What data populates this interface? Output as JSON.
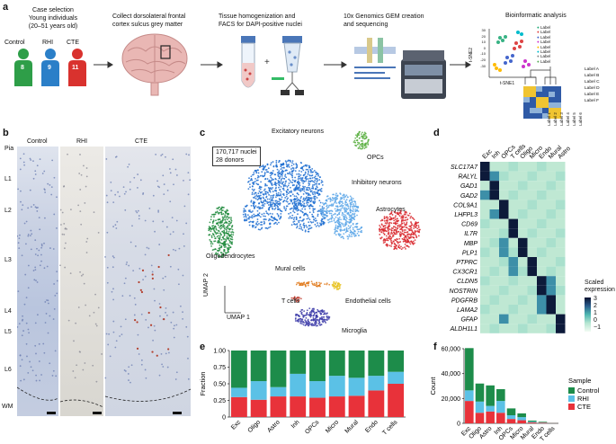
{
  "panel_a": {
    "letter": "a",
    "step1_title_lines": [
      "Case selection",
      "Young individuals",
      "(20–51 years old)"
    ],
    "groups": [
      {
        "label": "Control",
        "n": "8",
        "color": "#2e9e48"
      },
      {
        "label": "RHI",
        "n": "9",
        "color": "#2b7fc8"
      },
      {
        "label": "CTE",
        "n": "11",
        "color": "#d9322e"
      }
    ],
    "step2_lines": [
      "Collect dorsolateral frontal",
      "cortex sulcus grey matter"
    ],
    "step3_lines": [
      "Tissue homogenization and",
      "FACS for DAPI-positive nuclei"
    ],
    "step4_lines": [
      "10x Genomics GEM creation",
      "and sequencing"
    ],
    "step5_title": "Bioinformatic analysis",
    "tsne_ylabel": "t-SNE2",
    "tsne_xlabel": "t-SNE1",
    "tsne_yticks": [
      "30",
      "20",
      "10",
      "0",
      "-10",
      "-20",
      "-30"
    ],
    "tsne_legend": [
      "Label",
      "Label",
      "Label",
      "Label",
      "Label",
      "Label",
      "Label",
      "Label"
    ],
    "heatmap_row_labels": [
      "Label A",
      "Label B",
      "Label C",
      "Label D",
      "Label E",
      "Label F"
    ],
    "heatmap_col_labels": [
      "Label 1",
      "Label 2",
      "Label 3",
      "Label 4",
      "Label 5",
      "Label 6"
    ]
  },
  "panel_b": {
    "letter": "b",
    "columns": [
      "Control",
      "RHI",
      "CTE"
    ],
    "layers": [
      "Pia",
      "L1",
      "L2",
      "L3",
      "L4",
      "L5",
      "L6",
      "WM"
    ]
  },
  "panel_c": {
    "letter": "c",
    "info_lines": [
      "170,717 nuclei",
      "28 donors"
    ],
    "clusters": [
      {
        "label": "Excitatory neurons",
        "color": "#1f6fd1"
      },
      {
        "label": "OPCs",
        "color": "#5cb043"
      },
      {
        "label": "Inhibitory neurons",
        "color": "#5aa6e8"
      },
      {
        "label": "Astrocytes",
        "color": "#d8262b"
      },
      {
        "label": "Oligodendrocytes",
        "color": "#1e8a3c"
      },
      {
        "label": "Mural cells",
        "color": "#e07b1f"
      },
      {
        "label": "Endothelial cells",
        "color": "#e8c21e"
      },
      {
        "label": "T cells",
        "color": "#c0392b"
      },
      {
        "label": "Microglia",
        "color": "#3b3aa8"
      }
    ],
    "axis_y": "UMAP 2",
    "axis_x": "UMAP 1"
  },
  "panel_d": {
    "letter": "d",
    "columns": [
      "Exc",
      "Inh",
      "OPCs",
      "T cells",
      "Oligo",
      "Micro",
      "Endo",
      "Mural",
      "Astro"
    ],
    "genes": [
      "SLC17A7",
      "RALYL",
      "GAD1",
      "GAD2",
      "COL9A1",
      "LHFPL3",
      "CD69",
      "IL7R",
      "MBP",
      "PLP1",
      "PTPRC",
      "CX3CR1",
      "CLDN5",
      "NOSTRIN",
      "PDGFRB",
      "LAMA2",
      "GFAP",
      "ALDH1L1"
    ],
    "colorbar_title_lines": [
      "Scaled",
      "expression"
    ],
    "colorbar_ticks": [
      "3",
      "2",
      "1",
      "0",
      "−1"
    ],
    "high_cells": [
      [
        0,
        0
      ],
      [
        1,
        0
      ],
      [
        2,
        1
      ],
      [
        3,
        1
      ],
      [
        4,
        2
      ],
      [
        5,
        2
      ],
      [
        6,
        3
      ],
      [
        7,
        3
      ],
      [
        8,
        4
      ],
      [
        9,
        4
      ],
      [
        10,
        5
      ],
      [
        11,
        5
      ],
      [
        12,
        6
      ],
      [
        13,
        6
      ],
      [
        14,
        7
      ],
      [
        15,
        7
      ],
      [
        16,
        8
      ],
      [
        17,
        8
      ]
    ],
    "mid_cells": [
      [
        1,
        1
      ],
      [
        5,
        1
      ],
      [
        10,
        3
      ],
      [
        8,
        2
      ],
      [
        9,
        2
      ],
      [
        13,
        7
      ],
      [
        12,
        7
      ],
      [
        15,
        6
      ],
      [
        14,
        6
      ],
      [
        16,
        2
      ],
      [
        3,
        0
      ],
      [
        11,
        3
      ]
    ]
  },
  "panel_e": {
    "letter": "e",
    "chart_data": {
      "type": "bar",
      "stacked": true,
      "categories": [
        "Exc",
        "Oligo",
        "Astro",
        "Inh",
        "OPCs",
        "Micro",
        "Mural",
        "Endo",
        "T cells"
      ],
      "series": [
        {
          "name": "CTE",
          "color": "#e8323a",
          "values": [
            0.3,
            0.26,
            0.31,
            0.31,
            0.29,
            0.31,
            0.32,
            0.4,
            0.5
          ]
        },
        {
          "name": "RHI",
          "color": "#5bc1e6",
          "values": [
            0.14,
            0.28,
            0.14,
            0.34,
            0.25,
            0.31,
            0.27,
            0.22,
            0.18
          ]
        },
        {
          "name": "Control",
          "color": "#1d8c4a",
          "values": [
            0.56,
            0.46,
            0.55,
            0.35,
            0.46,
            0.38,
            0.41,
            0.38,
            0.32
          ]
        }
      ],
      "ylabel": "Fraction",
      "ylim": [
        0,
        1
      ],
      "yticks": [
        "0",
        "0.25",
        "0.50",
        "0.75",
        "1.00"
      ]
    }
  },
  "panel_f": {
    "letter": "f",
    "chart_data": {
      "type": "bar",
      "stacked": true,
      "categories": [
        "Exc",
        "Oligo",
        "Astro",
        "Inh",
        "OPCs",
        "Micro",
        "Mural",
        "Endo",
        "T cells"
      ],
      "series": [
        {
          "name": "CTE",
          "color": "#e8323a",
          "values": [
            18000,
            8500,
            9500,
            8500,
            3500,
            2500,
            700,
            500,
            100
          ]
        },
        {
          "name": "RHI",
          "color": "#5bc1e6",
          "values": [
            8500,
            9000,
            4500,
            9500,
            3000,
            2500,
            600,
            300,
            40
          ]
        },
        {
          "name": "Control",
          "color": "#1d8c4a",
          "values": [
            34000,
            14500,
            16500,
            9500,
            5500,
            3000,
            900,
            500,
            60
          ]
        }
      ],
      "ylabel": "Count",
      "ylim": [
        0,
        60000
      ],
      "yticks": [
        "0",
        "20,000",
        "40,000",
        "60,000"
      ],
      "legend_title": "Sample",
      "legend_order": [
        "Control",
        "RHI",
        "CTE"
      ]
    }
  }
}
